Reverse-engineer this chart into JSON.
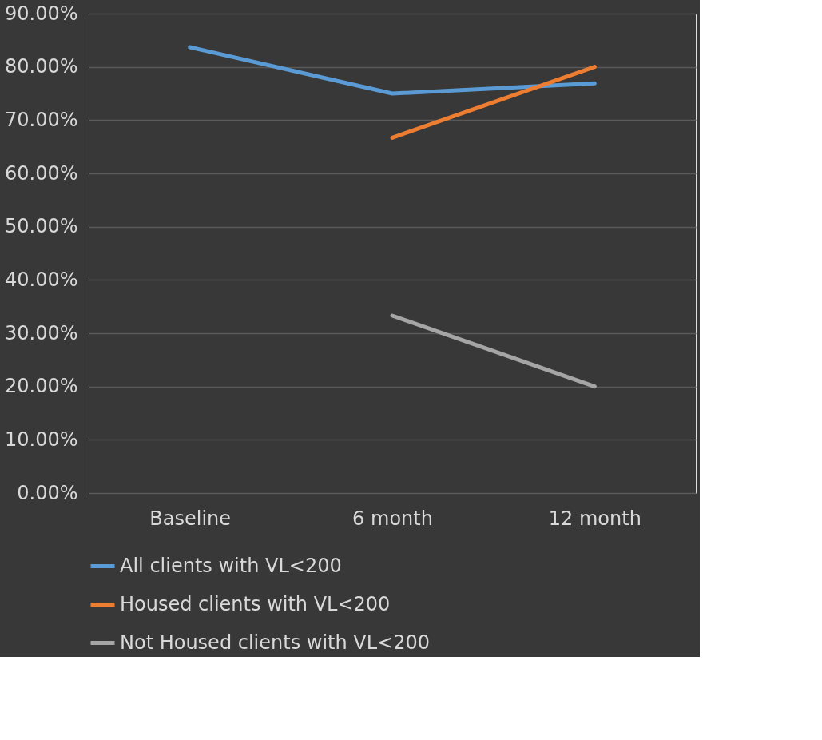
{
  "chart_data": {
    "type": "line",
    "categories": [
      "Baseline",
      "6 month",
      "12 month"
    ],
    "series": [
      {
        "name": "All clients with VL<200",
        "color": "#5b9bd5",
        "values": [
          83.7,
          75.0,
          76.9
        ]
      },
      {
        "name": "Housed clients with VL<200",
        "color": "#ed7d31",
        "values": [
          null,
          66.7,
          80.0
        ]
      },
      {
        "name": "Not Housed clients with VL<200",
        "color": "#a5a5a5",
        "values": [
          null,
          33.3,
          20.0
        ]
      }
    ],
    "ylim": [
      0,
      90
    ],
    "yticks": [
      {
        "value": 0,
        "label": "0.00%"
      },
      {
        "value": 10,
        "label": "10.00%"
      },
      {
        "value": 20,
        "label": "20.00%"
      },
      {
        "value": 30,
        "label": "30.00%"
      },
      {
        "value": 40,
        "label": "40.00%"
      },
      {
        "value": 50,
        "label": "50.00%"
      },
      {
        "value": 60,
        "label": "60.00%"
      },
      {
        "value": 70,
        "label": "70.00%"
      },
      {
        "value": 80,
        "label": "80.00%"
      },
      {
        "value": 90,
        "label": "90.00%"
      }
    ],
    "grid": "y",
    "legend": "bottom",
    "marker": "none",
    "line_style": "solid"
  }
}
